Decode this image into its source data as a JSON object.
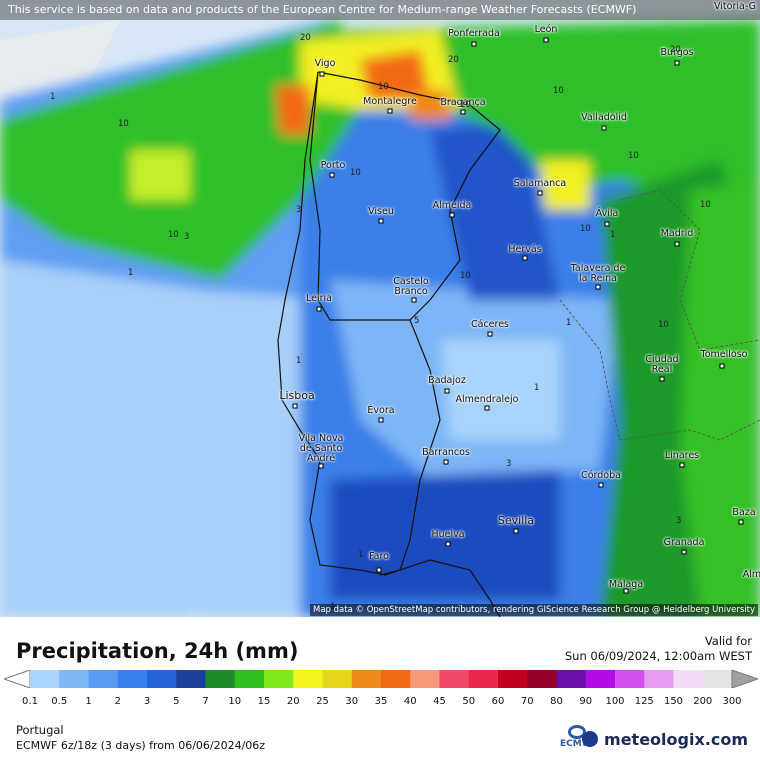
{
  "header": {
    "notice": "This service is based on data and products of the European Centre for Medium-range Weather Forecasts (ECMWF)",
    "edge_city_top_right": "Vitoria-G"
  },
  "map": {
    "attribution": "Map data © OpenStreetMap contributors, rendering GIScience Research Group @ Heidelberg University",
    "cities": [
      {
        "id": "ponferrada",
        "label": "Ponferrada"
      },
      {
        "id": "leon",
        "label": "León"
      },
      {
        "id": "burgos",
        "label": "Burgos"
      },
      {
        "id": "vigo",
        "label": "Vigo"
      },
      {
        "id": "montalegre",
        "label": "Montalegre"
      },
      {
        "id": "braganca",
        "label": "Bragança"
      },
      {
        "id": "valladolid",
        "label": "Valladolid"
      },
      {
        "id": "porto",
        "label": "Porto"
      },
      {
        "id": "salamanca",
        "label": "Salamanca"
      },
      {
        "id": "viseu",
        "label": "Viseu"
      },
      {
        "id": "almeida",
        "label": "Almeida"
      },
      {
        "id": "avila",
        "label": "Ávila"
      },
      {
        "id": "madrid",
        "label": "Madrid"
      },
      {
        "id": "hervas",
        "label": "Hervás"
      },
      {
        "id": "talavera",
        "label": "Talavera de la Reina"
      },
      {
        "id": "castelo_branco",
        "label": "Castelo Branco"
      },
      {
        "id": "leiria",
        "label": "Leiria"
      },
      {
        "id": "caceres",
        "label": "Cáceres"
      },
      {
        "id": "tomelloso",
        "label": "Tomelloso"
      },
      {
        "id": "ciudad_real",
        "label": "Ciudad Real"
      },
      {
        "id": "badajoz",
        "label": "Badajoz"
      },
      {
        "id": "almendralejo",
        "label": "Almendralejo"
      },
      {
        "id": "lisboa",
        "label": "Lisboa"
      },
      {
        "id": "evora",
        "label": "Évora"
      },
      {
        "id": "vila_nova",
        "label": "Vila Nova de Santo André"
      },
      {
        "id": "barrancos",
        "label": "Barrancos"
      },
      {
        "id": "linares",
        "label": "Linares"
      },
      {
        "id": "cordoba",
        "label": "Córdoba"
      },
      {
        "id": "baza",
        "label": "Baza"
      },
      {
        "id": "sevilla",
        "label": "Sevilla"
      },
      {
        "id": "granada",
        "label": "Granada"
      },
      {
        "id": "huelva",
        "label": "Huelva"
      },
      {
        "id": "faro",
        "label": "Faro"
      },
      {
        "id": "malaga",
        "label": "Málaga"
      },
      {
        "id": "alm",
        "label": "Alm"
      }
    ],
    "contour_labels": [
      "20",
      "20",
      "20",
      "10",
      "10",
      "10",
      "10",
      "10",
      "10",
      "10",
      "10",
      "10",
      "10",
      "10",
      "1",
      "1",
      "1",
      "1",
      "1",
      "1",
      "1",
      "1",
      "3",
      "3",
      "3",
      "3",
      "5"
    ]
  },
  "legend": {
    "title": "Precipitation, 24h (mm)",
    "valid_label": "Valid for",
    "valid_date": "Sun 06/09/2024, 12:00am WEST",
    "region": "Portugal",
    "model": "ECMWF 6z/18z (3 days) from 06/06/2024/06z",
    "brand": "meteologix.com",
    "ecmwf_logo": "ECMWF",
    "ticks": [
      "0.1",
      "0.5",
      "1",
      "2",
      "3",
      "5",
      "7",
      "10",
      "15",
      "20",
      "25",
      "30",
      "35",
      "40",
      "45",
      "50",
      "60",
      "70",
      "80",
      "90",
      "100",
      "125",
      "150",
      "200",
      "300"
    ],
    "colors": [
      "#a8d4fb",
      "#7fb8f7",
      "#5a9cf3",
      "#3a80ec",
      "#2563d6",
      "#1b3f9c",
      "#1f8a2a",
      "#2fc020",
      "#7de81c",
      "#f4f51e",
      "#e6d61c",
      "#f08a18",
      "#f36a15",
      "#f59a7a",
      "#ef4a6a",
      "#e8284c",
      "#c0001c",
      "#98002a",
      "#6e0ea8",
      "#b40ce4",
      "#d54ef0",
      "#e59cf0",
      "#f2dcf6",
      "#e4e4e4"
    ]
  }
}
